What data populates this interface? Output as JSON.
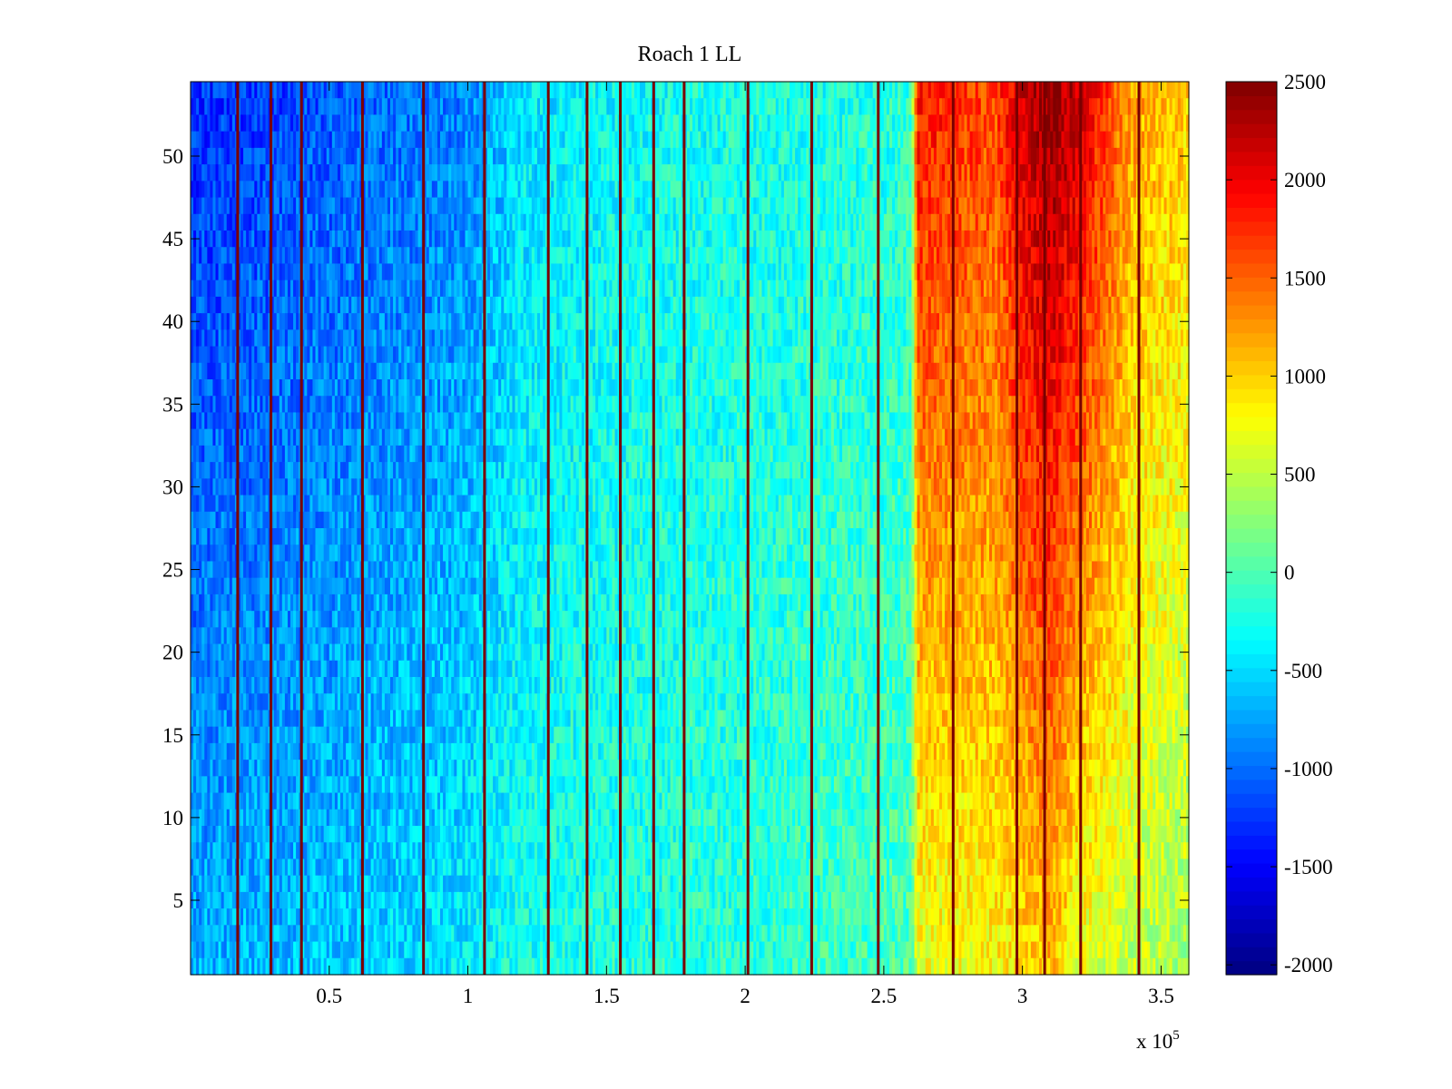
{
  "chart_data": {
    "type": "heatmap",
    "title": "Roach 1 LL",
    "xlabel": "",
    "ylabel": "",
    "x_multiplier_label": {
      "base": "x 10",
      "exponent": "5"
    },
    "xlim": [
      0,
      3.6
    ],
    "ylim": [
      0.5,
      54.5
    ],
    "xticks": [
      0.5,
      1,
      1.5,
      2,
      2.5,
      3,
      3.5
    ],
    "xtick_labels": [
      "0.5",
      "1",
      "1.5",
      "2",
      "2.5",
      "3",
      "3.5"
    ],
    "yticks": [
      5,
      10,
      15,
      20,
      25,
      30,
      35,
      40,
      45,
      50
    ],
    "ytick_labels": [
      "5",
      "10",
      "15",
      "20",
      "25",
      "30",
      "35",
      "40",
      "45",
      "50"
    ],
    "rows": 54,
    "colormap": "jet",
    "colorbar": {
      "range": [
        -2050,
        2500
      ],
      "ticks": [
        -2000,
        -1500,
        -1000,
        -500,
        0,
        500,
        1000,
        1500,
        2000,
        2500
      ],
      "tick_labels": [
        "-2000",
        "-1500",
        "-1000",
        "-500",
        "0",
        "500",
        "1000",
        "1500",
        "2000",
        "2500"
      ]
    },
    "vertical_stripe_x": [
      0.17,
      0.29,
      0.4,
      0.62,
      0.84,
      1.06,
      1.29,
      1.43,
      1.55,
      1.67,
      1.78,
      2.01,
      2.24,
      2.48,
      2.75,
      2.98,
      3.08,
      3.21,
      3.42
    ],
    "value_profile": [
      {
        "x": 0.0,
        "top": -1300,
        "bottom": -700
      },
      {
        "x": 0.5,
        "top": -1100,
        "bottom": -600
      },
      {
        "x": 1.0,
        "top": -900,
        "bottom": -400
      },
      {
        "x": 1.2,
        "top": -450,
        "bottom": -250
      },
      {
        "x": 1.6,
        "top": -300,
        "bottom": -200
      },
      {
        "x": 2.0,
        "top": -250,
        "bottom": -150
      },
      {
        "x": 2.5,
        "top": -200,
        "bottom": -50
      },
      {
        "x": 2.6,
        "top": -150,
        "bottom": 0
      },
      {
        "x": 2.62,
        "top": 1900,
        "bottom": 700
      },
      {
        "x": 2.9,
        "top": 1600,
        "bottom": 800
      },
      {
        "x": 3.0,
        "top": 2200,
        "bottom": 900
      },
      {
        "x": 3.1,
        "top": 2450,
        "bottom": 1100
      },
      {
        "x": 3.2,
        "top": 2200,
        "bottom": 700
      },
      {
        "x": 3.4,
        "top": 1200,
        "bottom": 500
      },
      {
        "x": 3.6,
        "top": 1000,
        "bottom": 400
      }
    ]
  }
}
